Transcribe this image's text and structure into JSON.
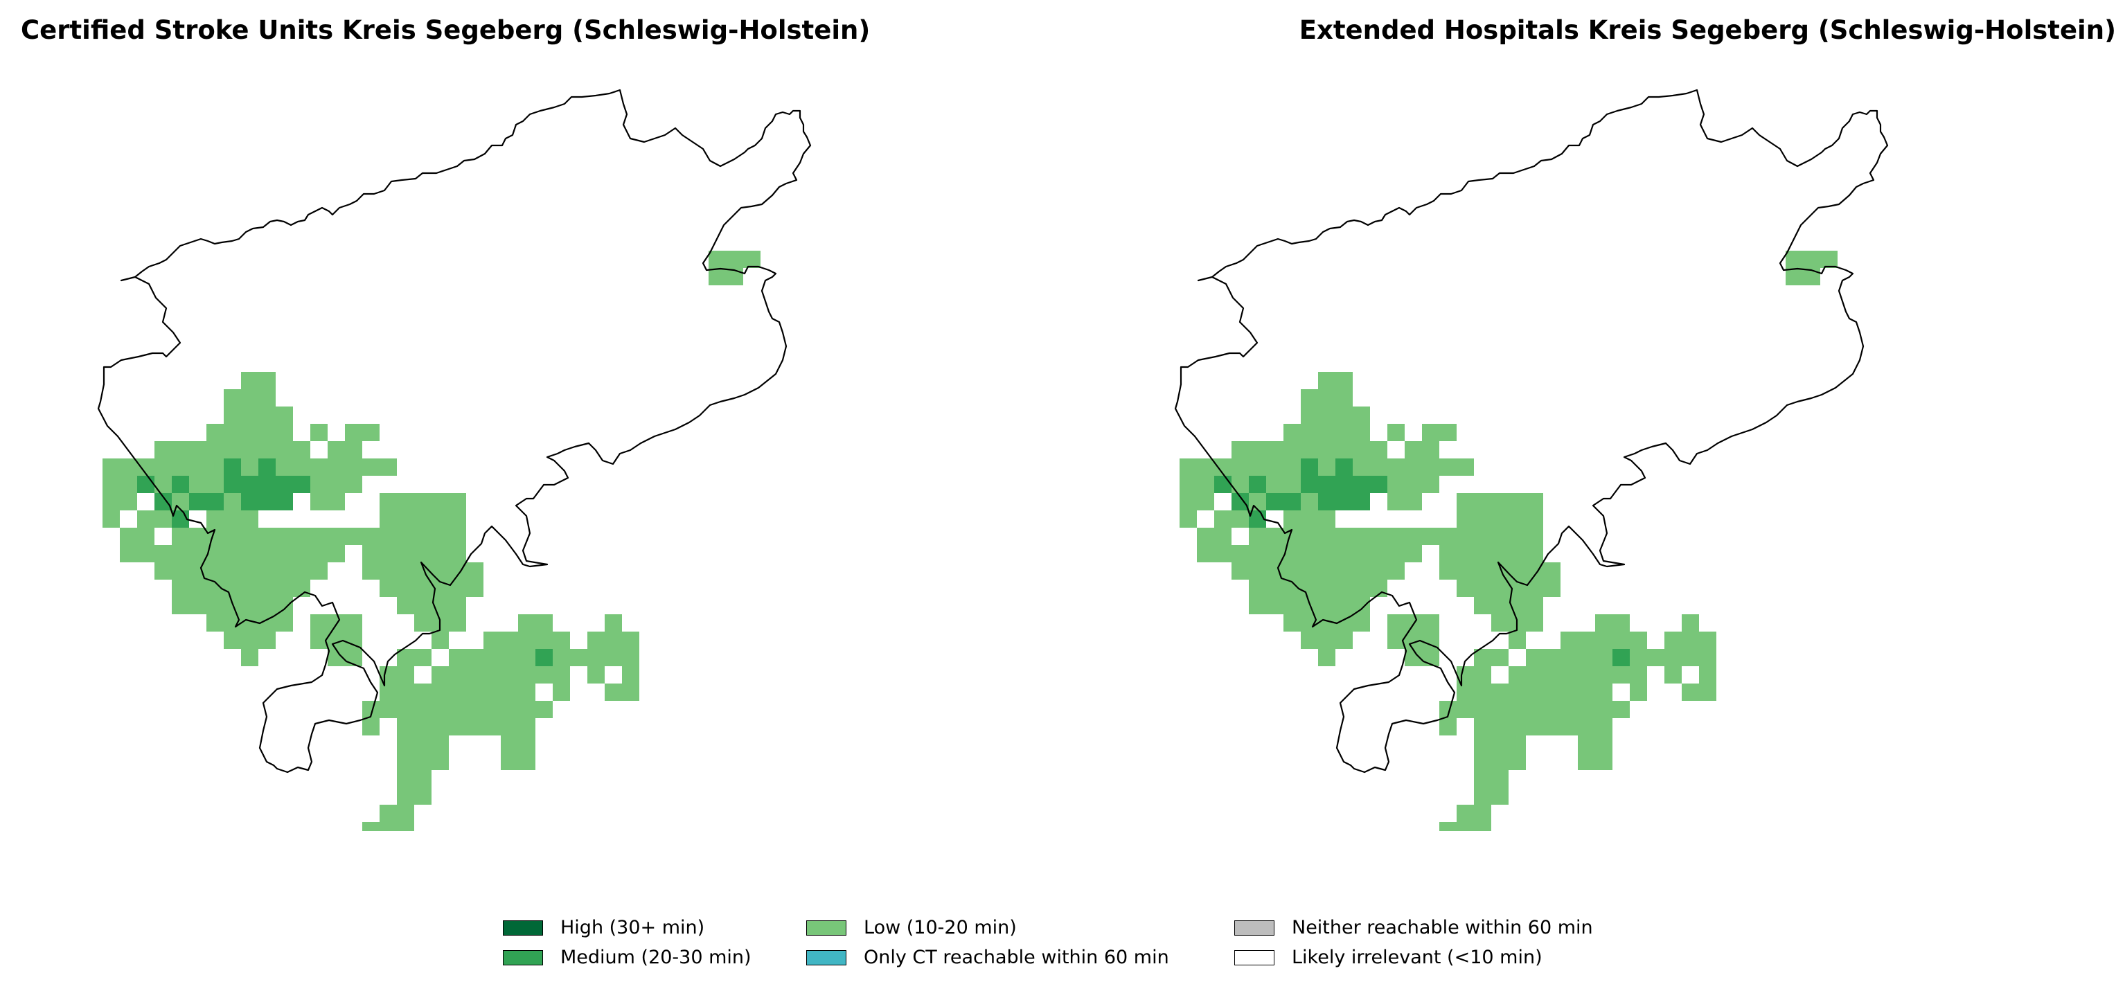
{
  "panels": [
    {
      "title": "Certified Stroke Units Kreis Segeberg (Schleswig-Holstein)",
      "cells": {
        "low": [
          [
            8,
            5
          ],
          [
            9,
            5
          ],
          [
            7,
            6
          ],
          [
            8,
            6
          ],
          [
            9,
            6
          ],
          [
            7,
            7
          ],
          [
            8,
            7
          ],
          [
            9,
            7
          ],
          [
            10,
            7
          ],
          [
            6,
            8
          ],
          [
            7,
            8
          ],
          [
            8,
            8
          ],
          [
            9,
            8
          ],
          [
            10,
            8
          ],
          [
            12,
            8
          ],
          [
            14,
            8
          ],
          [
            15,
            8
          ],
          [
            3,
            9
          ],
          [
            4,
            9
          ],
          [
            5,
            9
          ],
          [
            6,
            9
          ],
          [
            7,
            9
          ],
          [
            8,
            9
          ],
          [
            9,
            9
          ],
          [
            10,
            9
          ],
          [
            11,
            9
          ],
          [
            13,
            9
          ],
          [
            14,
            9
          ],
          [
            0,
            10
          ],
          [
            1,
            10
          ],
          [
            2,
            10
          ],
          [
            3,
            10
          ],
          [
            4,
            10
          ],
          [
            5,
            10
          ],
          [
            6,
            10
          ],
          [
            7,
            10
          ],
          [
            8,
            10
          ],
          [
            9,
            10
          ],
          [
            10,
            10
          ],
          [
            11,
            10
          ],
          [
            12,
            10
          ],
          [
            13,
            10
          ],
          [
            14,
            10
          ],
          [
            15,
            10
          ],
          [
            16,
            10
          ],
          [
            0,
            11
          ],
          [
            1,
            11
          ],
          [
            2,
            11
          ],
          [
            3,
            11
          ],
          [
            4,
            11
          ],
          [
            5,
            11
          ],
          [
            6,
            11
          ],
          [
            7,
            11
          ],
          [
            8,
            11
          ],
          [
            10,
            11
          ],
          [
            11,
            11
          ],
          [
            12,
            11
          ],
          [
            13,
            11
          ],
          [
            14,
            11
          ],
          [
            0,
            12
          ],
          [
            1,
            12
          ],
          [
            3,
            12
          ],
          [
            4,
            12
          ],
          [
            5,
            12
          ],
          [
            7,
            12
          ],
          [
            9,
            12
          ],
          [
            12,
            12
          ],
          [
            13,
            12
          ],
          [
            16,
            12
          ],
          [
            17,
            12
          ],
          [
            18,
            12
          ],
          [
            19,
            12
          ],
          [
            20,
            12
          ],
          [
            0,
            13
          ],
          [
            2,
            13
          ],
          [
            3,
            13
          ],
          [
            6,
            13
          ],
          [
            7,
            13
          ],
          [
            8,
            13
          ],
          [
            16,
            13
          ],
          [
            17,
            13
          ],
          [
            18,
            13
          ],
          [
            19,
            13
          ],
          [
            20,
            13
          ],
          [
            1,
            14
          ],
          [
            2,
            14
          ],
          [
            4,
            14
          ],
          [
            5,
            14
          ],
          [
            6,
            14
          ],
          [
            7,
            14
          ],
          [
            8,
            14
          ],
          [
            9,
            14
          ],
          [
            10,
            14
          ],
          [
            11,
            14
          ],
          [
            12,
            14
          ],
          [
            13,
            14
          ],
          [
            14,
            14
          ],
          [
            15,
            14
          ],
          [
            16,
            14
          ],
          [
            17,
            14
          ],
          [
            18,
            14
          ],
          [
            19,
            14
          ],
          [
            20,
            14
          ],
          [
            1,
            15
          ],
          [
            2,
            15
          ],
          [
            3,
            15
          ],
          [
            4,
            15
          ],
          [
            5,
            15
          ],
          [
            6,
            15
          ],
          [
            7,
            15
          ],
          [
            8,
            15
          ],
          [
            9,
            15
          ],
          [
            10,
            15
          ],
          [
            11,
            15
          ],
          [
            12,
            15
          ],
          [
            13,
            15
          ],
          [
            15,
            15
          ],
          [
            16,
            15
          ],
          [
            17,
            15
          ],
          [
            18,
            15
          ],
          [
            19,
            15
          ],
          [
            20,
            15
          ],
          [
            3,
            16
          ],
          [
            4,
            16
          ],
          [
            5,
            16
          ],
          [
            6,
            16
          ],
          [
            7,
            16
          ],
          [
            8,
            16
          ],
          [
            9,
            16
          ],
          [
            10,
            16
          ],
          [
            11,
            16
          ],
          [
            12,
            16
          ],
          [
            15,
            16
          ],
          [
            16,
            16
          ],
          [
            17,
            16
          ],
          [
            18,
            16
          ],
          [
            19,
            16
          ],
          [
            20,
            16
          ],
          [
            21,
            16
          ],
          [
            4,
            17
          ],
          [
            5,
            17
          ],
          [
            6,
            17
          ],
          [
            7,
            17
          ],
          [
            8,
            17
          ],
          [
            9,
            17
          ],
          [
            10,
            17
          ],
          [
            11,
            17
          ],
          [
            16,
            17
          ],
          [
            17,
            17
          ],
          [
            18,
            17
          ],
          [
            19,
            17
          ],
          [
            20,
            17
          ],
          [
            21,
            17
          ],
          [
            4,
            18
          ],
          [
            5,
            18
          ],
          [
            6,
            18
          ],
          [
            7,
            18
          ],
          [
            8,
            18
          ],
          [
            9,
            18
          ],
          [
            10,
            18
          ],
          [
            17,
            18
          ],
          [
            18,
            18
          ],
          [
            19,
            18
          ],
          [
            20,
            18
          ],
          [
            6,
            19
          ],
          [
            7,
            19
          ],
          [
            8,
            19
          ],
          [
            9,
            19
          ],
          [
            10,
            19
          ],
          [
            12,
            19
          ],
          [
            13,
            19
          ],
          [
            14,
            19
          ],
          [
            18,
            19
          ],
          [
            19,
            19
          ],
          [
            20,
            19
          ],
          [
            24,
            19
          ],
          [
            25,
            19
          ],
          [
            29,
            19
          ],
          [
            7,
            20
          ],
          [
            8,
            20
          ],
          [
            9,
            20
          ],
          [
            12,
            20
          ],
          [
            13,
            20
          ],
          [
            14,
            20
          ],
          [
            19,
            20
          ],
          [
            22,
            20
          ],
          [
            23,
            20
          ],
          [
            24,
            20
          ],
          [
            25,
            20
          ],
          [
            26,
            20
          ],
          [
            28,
            20
          ],
          [
            29,
            20
          ],
          [
            30,
            20
          ],
          [
            8,
            21
          ],
          [
            13,
            21
          ],
          [
            14,
            21
          ],
          [
            17,
            21
          ],
          [
            18,
            21
          ],
          [
            20,
            21
          ],
          [
            21,
            21
          ],
          [
            22,
            21
          ],
          [
            23,
            21
          ],
          [
            24,
            21
          ],
          [
            25,
            21
          ],
          [
            26,
            21
          ],
          [
            27,
            21
          ],
          [
            28,
            21
          ],
          [
            29,
            21
          ],
          [
            30,
            21
          ],
          [
            16,
            22
          ],
          [
            17,
            22
          ],
          [
            19,
            22
          ],
          [
            20,
            22
          ],
          [
            21,
            22
          ],
          [
            22,
            22
          ],
          [
            23,
            22
          ],
          [
            24,
            22
          ],
          [
            25,
            22
          ],
          [
            26,
            22
          ],
          [
            28,
            22
          ],
          [
            30,
            22
          ],
          [
            16,
            23
          ],
          [
            17,
            23
          ],
          [
            18,
            23
          ],
          [
            19,
            23
          ],
          [
            20,
            23
          ],
          [
            21,
            23
          ],
          [
            22,
            23
          ],
          [
            23,
            23
          ],
          [
            24,
            23
          ],
          [
            26,
            23
          ],
          [
            29,
            23
          ],
          [
            30,
            23
          ],
          [
            15,
            24
          ],
          [
            16,
            24
          ],
          [
            17,
            24
          ],
          [
            18,
            24
          ],
          [
            19,
            24
          ],
          [
            20,
            24
          ],
          [
            21,
            24
          ],
          [
            22,
            24
          ],
          [
            23,
            24
          ],
          [
            24,
            24
          ],
          [
            25,
            24
          ],
          [
            15,
            25
          ],
          [
            17,
            25
          ],
          [
            18,
            25
          ],
          [
            19,
            25
          ],
          [
            20,
            25
          ],
          [
            21,
            25
          ],
          [
            22,
            25
          ],
          [
            23,
            25
          ],
          [
            24,
            25
          ],
          [
            17,
            26
          ],
          [
            18,
            26
          ],
          [
            19,
            26
          ],
          [
            23,
            26
          ],
          [
            24,
            26
          ],
          [
            17,
            27
          ],
          [
            18,
            27
          ],
          [
            19,
            27
          ],
          [
            23,
            27
          ],
          [
            24,
            27
          ],
          [
            17,
            28
          ],
          [
            18,
            28
          ],
          [
            17,
            29
          ],
          [
            18,
            29
          ],
          [
            16,
            30
          ],
          [
            17,
            30
          ],
          [
            15,
            31
          ],
          [
            16,
            31
          ],
          [
            17,
            31
          ],
          [
            15,
            32
          ],
          [
            16,
            32
          ],
          [
            17,
            32
          ],
          [
            18,
            32
          ],
          [
            15,
            33
          ],
          [
            17,
            33
          ],
          [
            35,
            -2
          ],
          [
            36,
            -2
          ],
          [
            37,
            -2
          ],
          [
            36,
            -1
          ],
          [
            35,
            -1
          ]
        ],
        "medium": [
          [
            2,
            11
          ],
          [
            4,
            11
          ],
          [
            3,
            12
          ],
          [
            5,
            12
          ],
          [
            7,
            10
          ],
          [
            9,
            10
          ],
          [
            7,
            11
          ],
          [
            8,
            11
          ],
          [
            9,
            11
          ],
          [
            10,
            11
          ],
          [
            11,
            11
          ],
          [
            6,
            12
          ],
          [
            8,
            12
          ],
          [
            9,
            12
          ],
          [
            10,
            12
          ],
          [
            4,
            13
          ],
          [
            25,
            21
          ]
        ],
        "high": []
      }
    },
    {
      "title": "Extended Hospitals Kreis Segeberg (Schleswig-Holstein)",
      "cells": "same"
    }
  ],
  "legend": {
    "items": [
      {
        "label": "High (30+ min)",
        "color": "#006837"
      },
      {
        "label": "Medium (20-30 min)",
        "color": "#31a354"
      },
      {
        "label": "Low (10-20 min)",
        "color": "#78c679"
      },
      {
        "label": "Only CT reachable within 60 min",
        "color": "#41b6c4"
      },
      {
        "label": "Neither reachable within 60 min",
        "color": "#bdbdbd"
      },
      {
        "label": "Likely irrelevant (<10 min)",
        "color": "#ffffff"
      }
    ]
  }
}
